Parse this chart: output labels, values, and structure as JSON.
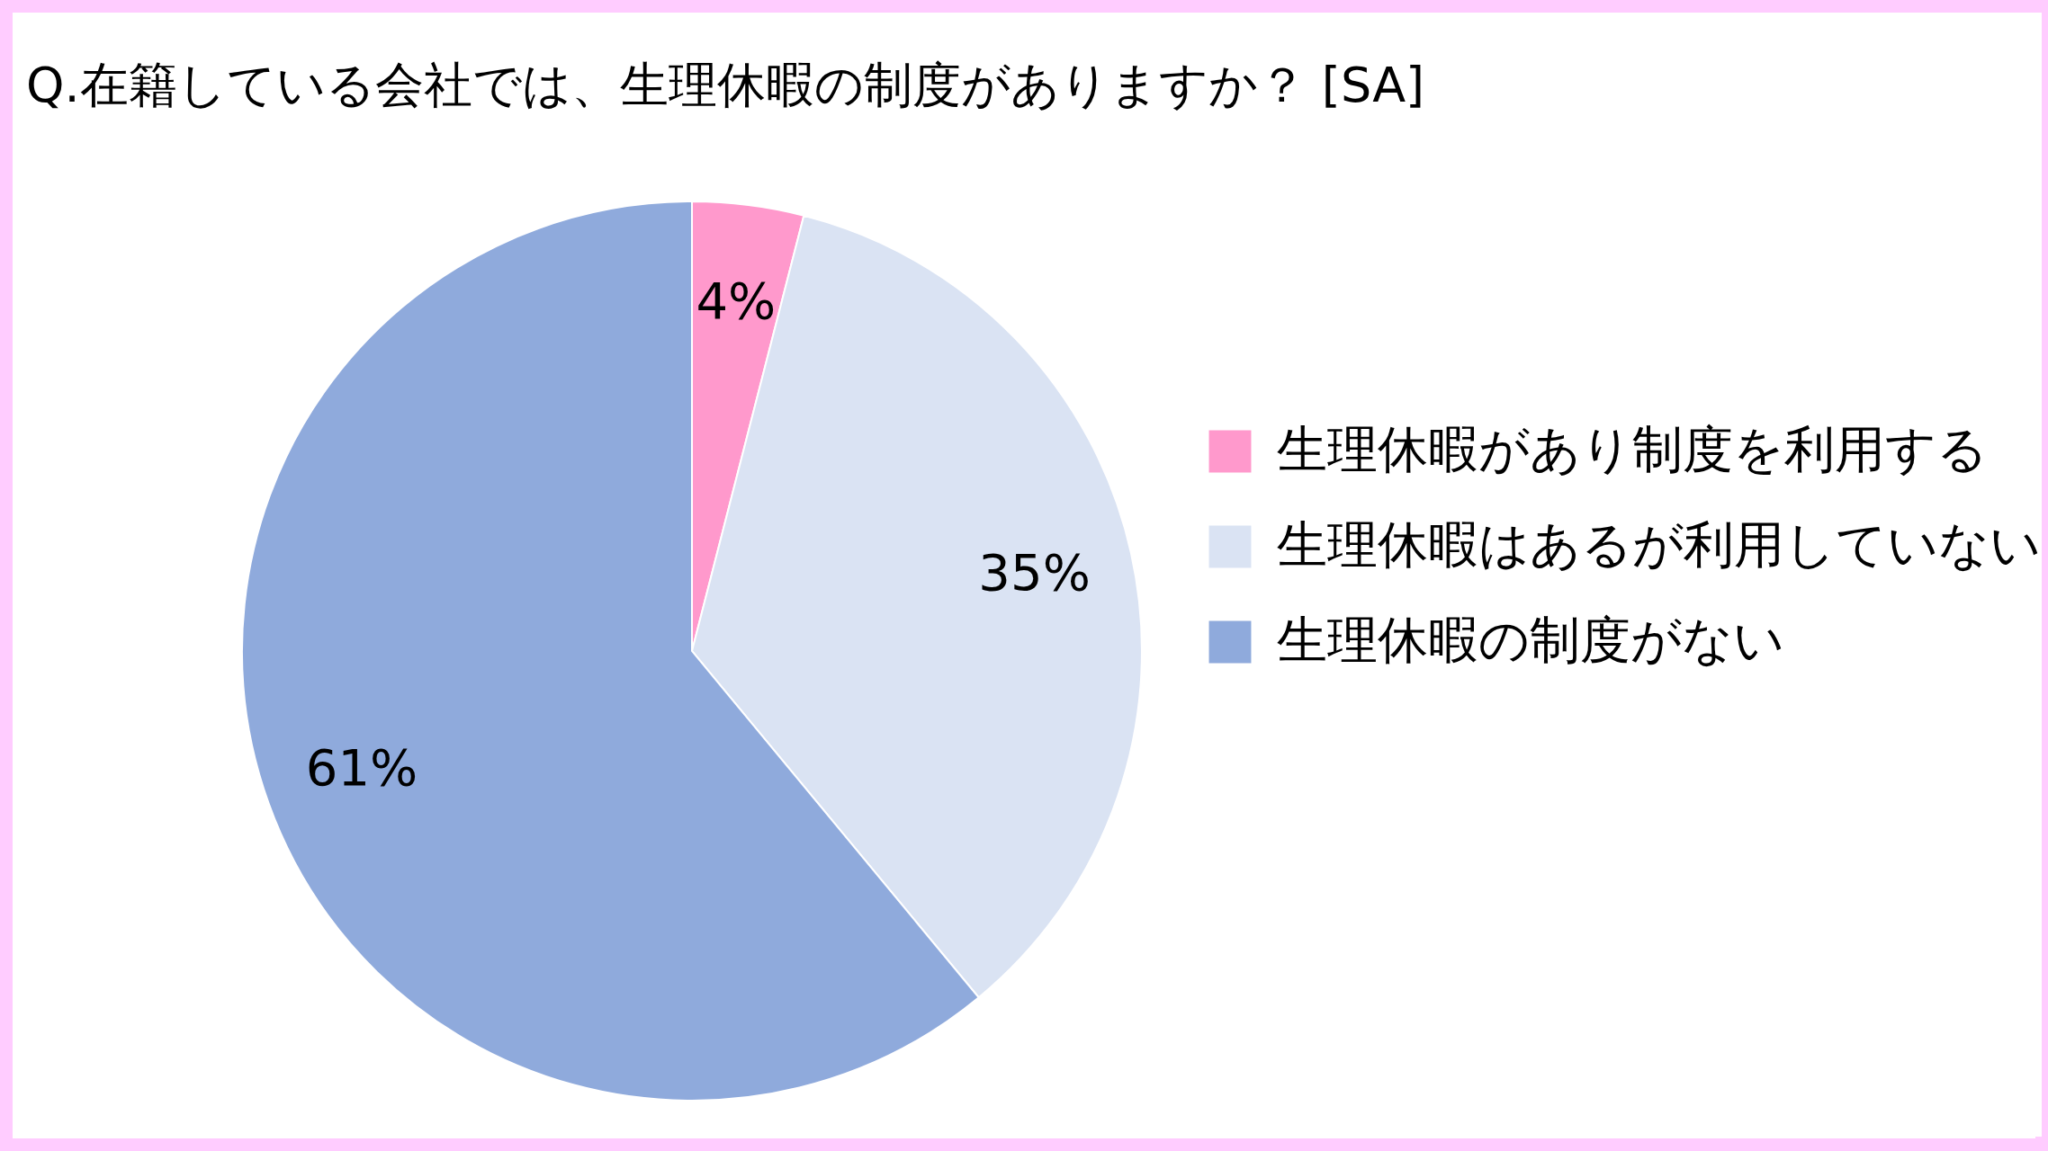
{
  "chart_data": {
    "type": "pie",
    "title": "Q.在籍している会社では、生理休暇の制度がありますか？ [SA]",
    "categories": [
      "生理休暇があり制度を利用する",
      "生理休暇はあるが利用していない",
      "生理休暇の制度がない"
    ],
    "values": [
      4,
      35,
      61
    ],
    "colors": [
      "#ff99cc",
      "#dae3f3",
      "#8faadc"
    ],
    "value_labels": [
      "4%",
      "35%",
      "61%"
    ],
    "legend": "right"
  }
}
